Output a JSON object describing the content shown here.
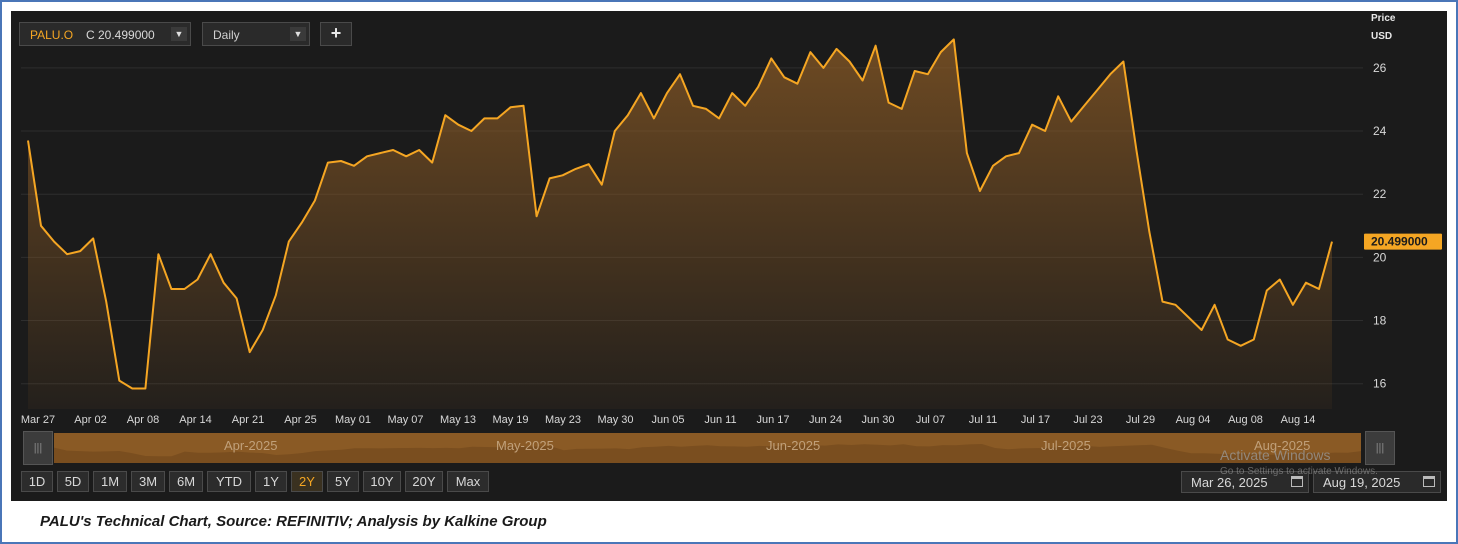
{
  "toolbar": {
    "symbol": "PALU.O",
    "close_label": "C 20.499000",
    "interval": "Daily",
    "add_label": "+"
  },
  "axis": {
    "price_title": "Price",
    "currency": "USD"
  },
  "navigator": {
    "months": [
      "Apr-2025",
      "May-2025",
      "Jun-2025",
      "Jul-2025",
      "Aug-2025"
    ]
  },
  "range_buttons": [
    "1D",
    "5D",
    "1M",
    "3M",
    "6M",
    "YTD",
    "1Y",
    "2Y",
    "5Y",
    "10Y",
    "20Y",
    "Max"
  ],
  "active_range": "2Y",
  "date_range": {
    "from": "Mar 26, 2025",
    "to": "Aug 19, 2025"
  },
  "watermark": {
    "title": "Activate Windows",
    "subtitle": "Go to Settings to activate Windows."
  },
  "caption": "PALU's Technical Chart, Source: REFINITIV; Analysis by Kalkine Group",
  "colors": {
    "line": "#f5a623",
    "fill": "#8a5a25",
    "background": "#1b1b1b",
    "grid": "#2e2e2e",
    "frame": "#4a76b8",
    "last_price_tag": "#f5a623"
  },
  "chart_data": {
    "type": "area",
    "title": "",
    "xlabel": "",
    "ylabel": "Price USD",
    "ylim": [
      15.2,
      27.8
    ],
    "yticks": [
      16,
      18,
      20,
      22,
      24,
      26
    ],
    "x_tick_labels": [
      "Mar 27",
      "Apr 02",
      "Apr 08",
      "Apr 14",
      "Apr 21",
      "Apr 25",
      "May 01",
      "May 07",
      "May 13",
      "May 19",
      "May 23",
      "May 30",
      "Jun 05",
      "Jun 11",
      "Jun 17",
      "Jun 24",
      "Jun 30",
      "Jul 07",
      "Jul 11",
      "Jul 17",
      "Jul 23",
      "Jul 29",
      "Aug 04",
      "Aug 08",
      "Aug 14"
    ],
    "last_price": "20.499000",
    "series": [
      {
        "values": [
          23.7,
          21.0,
          20.5,
          20.1,
          20.2,
          20.6,
          18.6,
          16.1,
          15.85,
          15.85,
          20.1,
          19.0,
          19.0,
          19.3,
          20.1,
          19.2,
          18.7,
          17.0,
          17.7,
          18.8,
          20.5,
          21.1,
          21.8,
          23.0,
          23.05,
          22.9,
          23.2,
          23.3,
          23.4,
          23.2,
          23.4,
          23.0,
          24.5,
          24.2,
          24.0,
          24.4,
          24.4,
          24.75,
          24.8,
          21.3,
          22.5,
          22.6,
          22.8,
          22.95,
          22.3,
          24.0,
          24.5,
          25.2,
          24.4,
          25.2,
          25.8,
          24.8,
          24.7,
          24.4,
          25.2,
          24.8,
          25.4,
          26.3,
          25.7,
          25.5,
          26.5,
          26.0,
          26.6,
          26.2,
          25.6,
          26.7,
          24.9,
          24.7,
          25.9,
          25.8,
          26.5,
          26.9,
          23.3,
          22.1,
          22.9,
          23.2,
          23.3,
          24.2,
          24.0,
          25.1,
          24.3,
          24.8,
          25.3,
          25.8,
          26.2,
          23.4,
          20.8,
          18.6,
          18.5,
          18.1,
          17.7,
          18.5,
          17.4,
          17.2,
          17.4,
          18.95,
          19.3,
          18.5,
          19.2,
          19.0,
          20.499
        ]
      }
    ]
  }
}
